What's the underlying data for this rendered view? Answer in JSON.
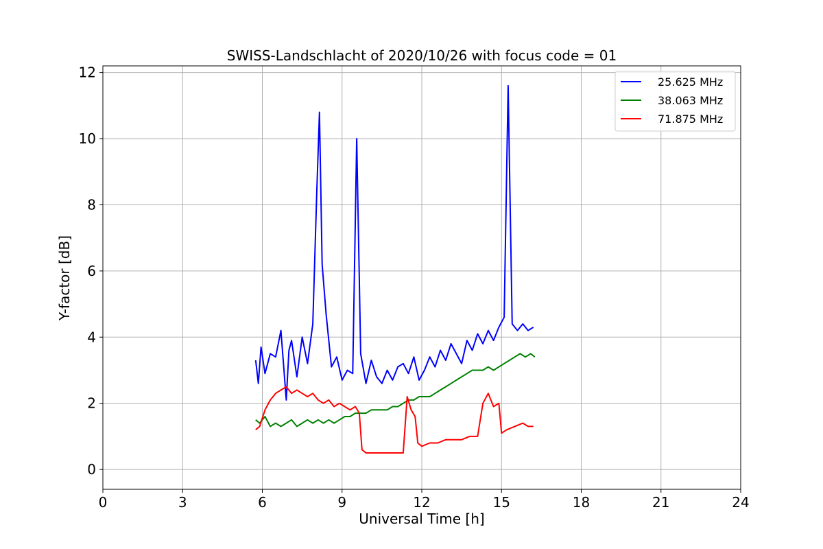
{
  "chart_data": {
    "type": "line",
    "title": "SWISS-Landschlacht of 2020/10/26 with focus code = 01",
    "xlabel": "Universal Time [h]",
    "ylabel": "Y-factor [dB]",
    "xlim": [
      0,
      24
    ],
    "ylim": [
      -0.6,
      12.2
    ],
    "xticks": [
      0,
      3,
      6,
      9,
      12,
      15,
      18,
      21,
      24
    ],
    "yticks": [
      0,
      2,
      4,
      6,
      8,
      10,
      12
    ],
    "grid": true,
    "legend_position": "top-right",
    "series": [
      {
        "name": "25.625 MHz",
        "color": "#0000ff",
        "x": [
          5.75,
          5.85,
          5.95,
          6.1,
          6.3,
          6.5,
          6.7,
          6.9,
          7.0,
          7.1,
          7.3,
          7.5,
          7.7,
          7.9,
          8.05,
          8.15,
          8.25,
          8.4,
          8.6,
          8.8,
          9.0,
          9.2,
          9.4,
          9.55,
          9.7,
          9.9,
          10.1,
          10.3,
          10.5,
          10.7,
          10.9,
          11.1,
          11.3,
          11.5,
          11.7,
          11.9,
          12.1,
          12.3,
          12.5,
          12.7,
          12.9,
          13.1,
          13.3,
          13.5,
          13.7,
          13.9,
          14.1,
          14.3,
          14.5,
          14.7,
          14.9,
          15.1,
          15.25,
          15.4,
          15.6,
          15.8,
          16.0,
          16.2
        ],
        "y": [
          3.3,
          2.6,
          3.7,
          2.9,
          3.5,
          3.4,
          4.2,
          2.1,
          3.6,
          3.9,
          2.8,
          4.0,
          3.2,
          4.4,
          8.4,
          10.8,
          6.2,
          4.7,
          3.1,
          3.4,
          2.7,
          3.0,
          2.9,
          10.0,
          3.5,
          2.6,
          3.3,
          2.8,
          2.6,
          3.0,
          2.7,
          3.1,
          3.2,
          2.9,
          3.4,
          2.7,
          3.0,
          3.4,
          3.1,
          3.6,
          3.3,
          3.8,
          3.5,
          3.2,
          3.9,
          3.6,
          4.1,
          3.8,
          4.2,
          3.9,
          4.3,
          4.6,
          11.6,
          4.4,
          4.2,
          4.4,
          4.2,
          4.3
        ]
      },
      {
        "name": "38.063 MHz",
        "color": "#008000",
        "x": [
          5.75,
          5.9,
          6.1,
          6.3,
          6.5,
          6.7,
          6.9,
          7.1,
          7.3,
          7.5,
          7.7,
          7.9,
          8.1,
          8.3,
          8.5,
          8.7,
          8.9,
          9.1,
          9.3,
          9.5,
          9.7,
          9.9,
          10.1,
          10.3,
          10.5,
          10.7,
          10.9,
          11.1,
          11.3,
          11.5,
          11.7,
          11.9,
          12.1,
          12.3,
          12.5,
          12.7,
          12.9,
          13.1,
          13.3,
          13.5,
          13.7,
          13.9,
          14.1,
          14.3,
          14.5,
          14.7,
          14.9,
          15.1,
          15.3,
          15.5,
          15.7,
          15.9,
          16.1,
          16.25
        ],
        "y": [
          1.5,
          1.4,
          1.6,
          1.3,
          1.4,
          1.3,
          1.4,
          1.5,
          1.3,
          1.4,
          1.5,
          1.4,
          1.5,
          1.4,
          1.5,
          1.4,
          1.5,
          1.6,
          1.6,
          1.7,
          1.7,
          1.7,
          1.8,
          1.8,
          1.8,
          1.8,
          1.9,
          1.9,
          2.0,
          2.1,
          2.1,
          2.2,
          2.2,
          2.2,
          2.3,
          2.4,
          2.5,
          2.6,
          2.7,
          2.8,
          2.9,
          3.0,
          3.0,
          3.0,
          3.1,
          3.0,
          3.1,
          3.2,
          3.3,
          3.4,
          3.5,
          3.4,
          3.5,
          3.4
        ]
      },
      {
        "name": "71.875 MHz",
        "color": "#ff0000",
        "x": [
          5.75,
          5.9,
          6.1,
          6.3,
          6.5,
          6.7,
          6.9,
          7.1,
          7.3,
          7.5,
          7.7,
          7.9,
          8.1,
          8.3,
          8.5,
          8.7,
          8.9,
          9.1,
          9.3,
          9.5,
          9.65,
          9.75,
          9.9,
          10.2,
          10.5,
          10.8,
          11.1,
          11.3,
          11.45,
          11.6,
          11.75,
          11.85,
          12.0,
          12.3,
          12.6,
          12.9,
          13.2,
          13.5,
          13.8,
          14.1,
          14.3,
          14.5,
          14.7,
          14.9,
          15.0,
          15.2,
          15.5,
          15.8,
          16.0,
          16.2
        ],
        "y": [
          1.2,
          1.3,
          1.8,
          2.1,
          2.3,
          2.4,
          2.5,
          2.3,
          2.4,
          2.3,
          2.2,
          2.3,
          2.1,
          2.0,
          2.1,
          1.9,
          2.0,
          1.9,
          1.8,
          1.9,
          1.7,
          0.6,
          0.5,
          0.5,
          0.5,
          0.5,
          0.5,
          0.5,
          2.2,
          1.8,
          1.6,
          0.8,
          0.7,
          0.8,
          0.8,
          0.9,
          0.9,
          0.9,
          1.0,
          1.0,
          2.0,
          2.3,
          1.9,
          2.0,
          1.1,
          1.2,
          1.3,
          1.4,
          1.3,
          1.3
        ]
      }
    ]
  }
}
